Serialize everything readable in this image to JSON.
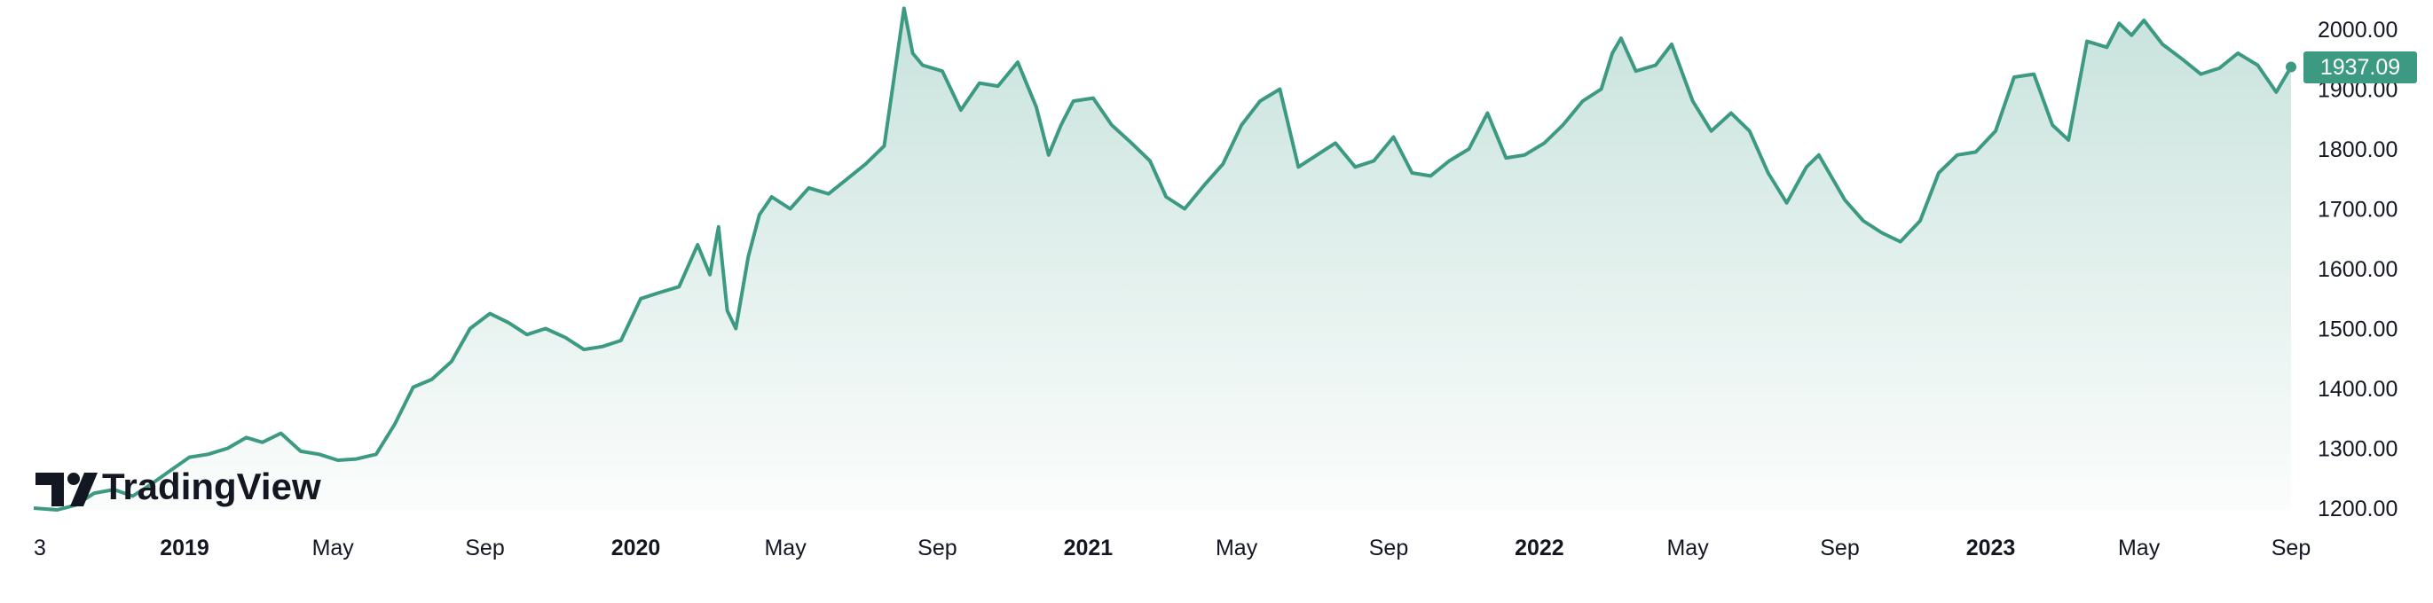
{
  "logo": {
    "text": "TradingView"
  },
  "last_price_badge": {
    "label": "1937.09",
    "color": "#3d9a82"
  },
  "colors": {
    "line": "#3d9a82",
    "fill_top": "#3d9a82"
  },
  "chart_data": {
    "type": "area",
    "y_axis_position": "right",
    "ylim": [
      1180,
      2065
    ],
    "y_ticks": [
      "2000.00",
      "1900.00",
      "1800.00",
      "1700.00",
      "1600.00",
      "1500.00",
      "1400.00",
      "1300.00",
      "1200.00"
    ],
    "x_ticks": [
      {
        "label": "3",
        "date": "2018-09-01",
        "bold": false
      },
      {
        "label": "2019",
        "date": "2019-01-01",
        "bold": true
      },
      {
        "label": "May",
        "date": "2019-05-01",
        "bold": false
      },
      {
        "label": "Sep",
        "date": "2019-09-01",
        "bold": false
      },
      {
        "label": "2020",
        "date": "2020-01-01",
        "bold": true
      },
      {
        "label": "May",
        "date": "2020-05-01",
        "bold": false
      },
      {
        "label": "Sep",
        "date": "2020-09-01",
        "bold": false
      },
      {
        "label": "2021",
        "date": "2021-01-01",
        "bold": true
      },
      {
        "label": "May",
        "date": "2021-05-01",
        "bold": false
      },
      {
        "label": "Sep",
        "date": "2021-09-01",
        "bold": false
      },
      {
        "label": "2022",
        "date": "2022-01-01",
        "bold": true
      },
      {
        "label": "May",
        "date": "2022-05-01",
        "bold": false
      },
      {
        "label": "Sep",
        "date": "2022-09-01",
        "bold": false
      },
      {
        "label": "2023",
        "date": "2023-01-01",
        "bold": true
      },
      {
        "label": "May",
        "date": "2023-05-01",
        "bold": false
      },
      {
        "label": "Sep",
        "date": "2023-09-01",
        "bold": false
      }
    ],
    "series": [
      {
        "points": [
          [
            "2018-09-01",
            1200
          ],
          [
            "2018-09-20",
            1197
          ],
          [
            "2018-10-05",
            1205
          ],
          [
            "2018-10-20",
            1225
          ],
          [
            "2018-11-05",
            1231
          ],
          [
            "2018-11-20",
            1220
          ],
          [
            "2018-12-05",
            1240
          ],
          [
            "2018-12-20",
            1262
          ],
          [
            "2019-01-05",
            1285
          ],
          [
            "2019-01-20",
            1290
          ],
          [
            "2019-02-05",
            1300
          ],
          [
            "2019-02-20",
            1318
          ],
          [
            "2019-03-05",
            1310
          ],
          [
            "2019-03-20",
            1325
          ],
          [
            "2019-04-05",
            1295
          ],
          [
            "2019-04-20",
            1290
          ],
          [
            "2019-05-05",
            1280
          ],
          [
            "2019-05-20",
            1282
          ],
          [
            "2019-06-05",
            1290
          ],
          [
            "2019-06-20",
            1340
          ],
          [
            "2019-07-05",
            1402
          ],
          [
            "2019-07-20",
            1415
          ],
          [
            "2019-08-05",
            1445
          ],
          [
            "2019-08-20",
            1500
          ],
          [
            "2019-09-05",
            1525
          ],
          [
            "2019-09-20",
            1510
          ],
          [
            "2019-10-05",
            1490
          ],
          [
            "2019-10-20",
            1500
          ],
          [
            "2019-11-05",
            1485
          ],
          [
            "2019-11-20",
            1465
          ],
          [
            "2019-12-05",
            1470
          ],
          [
            "2019-12-20",
            1480
          ],
          [
            "2020-01-05",
            1550
          ],
          [
            "2020-01-20",
            1560
          ],
          [
            "2020-02-05",
            1570
          ],
          [
            "2020-02-20",
            1640
          ],
          [
            "2020-03-01",
            1590
          ],
          [
            "2020-03-08",
            1670
          ],
          [
            "2020-03-15",
            1530
          ],
          [
            "2020-03-22",
            1500
          ],
          [
            "2020-04-01",
            1620
          ],
          [
            "2020-04-10",
            1690
          ],
          [
            "2020-04-20",
            1720
          ],
          [
            "2020-05-05",
            1700
          ],
          [
            "2020-05-20",
            1735
          ],
          [
            "2020-06-05",
            1725
          ],
          [
            "2020-06-20",
            1750
          ],
          [
            "2020-07-05",
            1775
          ],
          [
            "2020-07-20",
            1805
          ],
          [
            "2020-07-28",
            1920
          ],
          [
            "2020-08-05",
            2035
          ],
          [
            "2020-08-12",
            1960
          ],
          [
            "2020-08-20",
            1940
          ],
          [
            "2020-09-05",
            1930
          ],
          [
            "2020-09-20",
            1865
          ],
          [
            "2020-10-05",
            1910
          ],
          [
            "2020-10-20",
            1905
          ],
          [
            "2020-11-05",
            1945
          ],
          [
            "2020-11-20",
            1870
          ],
          [
            "2020-11-30",
            1790
          ],
          [
            "2020-12-10",
            1840
          ],
          [
            "2020-12-20",
            1880
          ],
          [
            "2021-01-05",
            1885
          ],
          [
            "2021-01-20",
            1840
          ],
          [
            "2021-02-05",
            1810
          ],
          [
            "2021-02-20",
            1780
          ],
          [
            "2021-03-05",
            1720
          ],
          [
            "2021-03-20",
            1700
          ],
          [
            "2021-04-05",
            1740
          ],
          [
            "2021-04-20",
            1775
          ],
          [
            "2021-05-05",
            1840
          ],
          [
            "2021-05-20",
            1880
          ],
          [
            "2021-06-05",
            1900
          ],
          [
            "2021-06-20",
            1770
          ],
          [
            "2021-07-05",
            1790
          ],
          [
            "2021-07-20",
            1810
          ],
          [
            "2021-08-05",
            1770
          ],
          [
            "2021-08-20",
            1780
          ],
          [
            "2021-09-05",
            1820
          ],
          [
            "2021-09-20",
            1760
          ],
          [
            "2021-10-05",
            1755
          ],
          [
            "2021-10-20",
            1780
          ],
          [
            "2021-11-05",
            1800
          ],
          [
            "2021-11-20",
            1860
          ],
          [
            "2021-12-05",
            1785
          ],
          [
            "2021-12-20",
            1790
          ],
          [
            "2022-01-05",
            1810
          ],
          [
            "2022-01-20",
            1840
          ],
          [
            "2022-02-05",
            1880
          ],
          [
            "2022-02-20",
            1900
          ],
          [
            "2022-03-01",
            1960
          ],
          [
            "2022-03-08",
            1985
          ],
          [
            "2022-03-20",
            1930
          ],
          [
            "2022-04-05",
            1940
          ],
          [
            "2022-04-18",
            1975
          ],
          [
            "2022-05-05",
            1880
          ],
          [
            "2022-05-20",
            1830
          ],
          [
            "2022-06-05",
            1860
          ],
          [
            "2022-06-20",
            1830
          ],
          [
            "2022-07-05",
            1760
          ],
          [
            "2022-07-20",
            1710
          ],
          [
            "2022-08-05",
            1770
          ],
          [
            "2022-08-15",
            1790
          ],
          [
            "2022-09-05",
            1715
          ],
          [
            "2022-09-20",
            1680
          ],
          [
            "2022-10-05",
            1660
          ],
          [
            "2022-10-20",
            1645
          ],
          [
            "2022-11-05",
            1680
          ],
          [
            "2022-11-20",
            1760
          ],
          [
            "2022-12-05",
            1790
          ],
          [
            "2022-12-20",
            1795
          ],
          [
            "2023-01-05",
            1830
          ],
          [
            "2023-01-20",
            1920
          ],
          [
            "2023-02-05",
            1925
          ],
          [
            "2023-02-20",
            1840
          ],
          [
            "2023-03-05",
            1815
          ],
          [
            "2023-03-20",
            1980
          ],
          [
            "2023-04-05",
            1970
          ],
          [
            "2023-04-15",
            2010
          ],
          [
            "2023-04-25",
            1990
          ],
          [
            "2023-05-05",
            2015
          ],
          [
            "2023-05-20",
            1975
          ],
          [
            "2023-06-05",
            1950
          ],
          [
            "2023-06-20",
            1925
          ],
          [
            "2023-07-05",
            1935
          ],
          [
            "2023-07-20",
            1960
          ],
          [
            "2023-08-05",
            1940
          ],
          [
            "2023-08-20",
            1895
          ],
          [
            "2023-09-01",
            1937.09
          ]
        ]
      }
    ]
  }
}
